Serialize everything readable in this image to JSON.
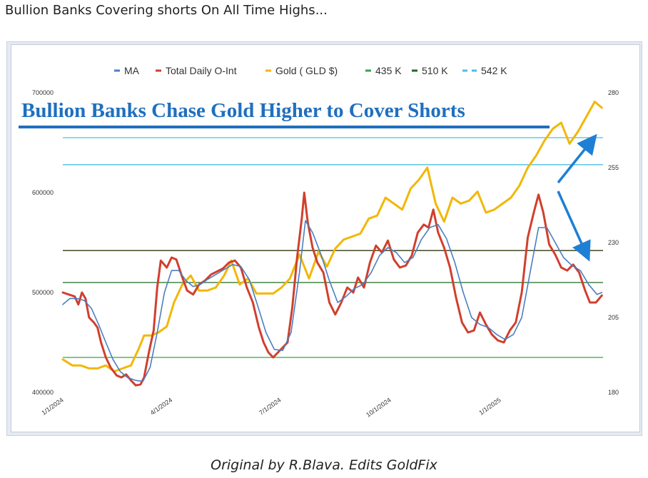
{
  "post": {
    "title": "Bullion Banks Covering shorts On All Time Highs...",
    "caption": "Original by R.Blava. Edits GoldFix"
  },
  "chart_data": {
    "type": "line",
    "annotation": "Bullion Banks Chase Gold Higher to Cover Shorts",
    "legend_position": "top",
    "grid": false,
    "x_ticks": [
      "1/1/2024",
      "4/1/2024",
      "7/1/2024",
      "10/1/2024",
      "1/1/2025"
    ],
    "x_range": [
      "2023-12-31",
      "2025-03-27"
    ],
    "y_left": {
      "range": [
        400000,
        700000
      ],
      "ticks": [
        "400000",
        "500000",
        "600000",
        "700000"
      ]
    },
    "y_right": {
      "range": [
        180,
        280
      ],
      "ticks": [
        "180",
        "205",
        "230",
        "255",
        "280"
      ]
    },
    "legend": [
      {
        "name": "MA",
        "color": "#4a7fc1",
        "style": "solid"
      },
      {
        "name": "Total Daily O-Int",
        "color": "#d13f2d",
        "style": "solid"
      },
      {
        "name": "Gold ( GLD $)",
        "color": "#f2b705",
        "style": "solid"
      },
      {
        "name": "435 K",
        "color": "#36a447",
        "style": "solid"
      },
      {
        "name": "510 K",
        "color": "#1d6a1d",
        "style": "solid"
      },
      {
        "name": "542 K",
        "color": "#4cbfe0",
        "style": "dashed"
      }
    ],
    "hlines_left_axis": [
      {
        "name": "435 K",
        "value": 435000,
        "color": "#36a447"
      },
      {
        "name": "510 K",
        "value": 510000,
        "color": "#1d6a1d"
      },
      {
        "name": "542 K",
        "value": 542000,
        "color": "#2f3a0e"
      }
    ],
    "hlines_right_axis": [
      {
        "value": 265,
        "color": "#4cbfe0"
      },
      {
        "value": 256,
        "color": "#4cbfe0"
      }
    ],
    "series": [
      {
        "name": "Total Daily O-Int",
        "axis": "left",
        "color": "#d13f2d",
        "points": [
          [
            "2023-12-31",
            500000
          ],
          [
            "2024-01-05",
            498000
          ],
          [
            "2024-01-10",
            496000
          ],
          [
            "2024-01-13",
            488000
          ],
          [
            "2024-01-16",
            500000
          ],
          [
            "2024-01-19",
            494000
          ],
          [
            "2024-01-22",
            475000
          ],
          [
            "2024-01-26",
            470000
          ],
          [
            "2024-01-29",
            465000
          ],
          [
            "2024-02-01",
            450000
          ],
          [
            "2024-02-05",
            435000
          ],
          [
            "2024-02-09",
            425000
          ],
          [
            "2024-02-14",
            417000
          ],
          [
            "2024-02-18",
            415000
          ],
          [
            "2024-02-22",
            418000
          ],
          [
            "2024-02-26",
            412000
          ],
          [
            "2024-03-01",
            407000
          ],
          [
            "2024-03-05",
            408000
          ],
          [
            "2024-03-08",
            415000
          ],
          [
            "2024-03-12",
            440000
          ],
          [
            "2024-03-16",
            462000
          ],
          [
            "2024-03-19",
            505000
          ],
          [
            "2024-03-22",
            532000
          ],
          [
            "2024-03-27",
            525000
          ],
          [
            "2024-03-31",
            535000
          ],
          [
            "2024-04-04",
            533000
          ],
          [
            "2024-04-09",
            515000
          ],
          [
            "2024-04-13",
            502000
          ],
          [
            "2024-04-18",
            498000
          ],
          [
            "2024-04-23",
            508000
          ],
          [
            "2024-04-28",
            512000
          ],
          [
            "2024-05-03",
            518000
          ],
          [
            "2024-05-08",
            521000
          ],
          [
            "2024-05-13",
            524000
          ],
          [
            "2024-05-18",
            530000
          ],
          [
            "2024-05-23",
            532000
          ],
          [
            "2024-05-28",
            525000
          ],
          [
            "2024-06-02",
            505000
          ],
          [
            "2024-06-07",
            490000
          ],
          [
            "2024-06-12",
            465000
          ],
          [
            "2024-06-16",
            450000
          ],
          [
            "2024-06-20",
            440000
          ],
          [
            "2024-06-24",
            435000
          ],
          [
            "2024-06-28",
            440000
          ],
          [
            "2024-07-02",
            445000
          ],
          [
            "2024-07-06",
            450000
          ],
          [
            "2024-07-10",
            485000
          ],
          [
            "2024-07-14",
            535000
          ],
          [
            "2024-07-18",
            575000
          ],
          [
            "2024-07-20",
            600000
          ],
          [
            "2024-07-23",
            570000
          ],
          [
            "2024-07-27",
            545000
          ],
          [
            "2024-07-31",
            530000
          ],
          [
            "2024-08-05",
            520000
          ],
          [
            "2024-08-10",
            490000
          ],
          [
            "2024-08-15",
            478000
          ],
          [
            "2024-08-20",
            490000
          ],
          [
            "2024-08-25",
            505000
          ],
          [
            "2024-08-30",
            500000
          ],
          [
            "2024-09-03",
            515000
          ],
          [
            "2024-09-08",
            505000
          ],
          [
            "2024-09-13",
            530000
          ],
          [
            "2024-09-18",
            547000
          ],
          [
            "2024-09-23",
            540000
          ],
          [
            "2024-09-28",
            552000
          ],
          [
            "2024-10-03",
            533000
          ],
          [
            "2024-10-08",
            525000
          ],
          [
            "2024-10-13",
            527000
          ],
          [
            "2024-10-18",
            537000
          ],
          [
            "2024-10-23",
            560000
          ],
          [
            "2024-10-28",
            568000
          ],
          [
            "2024-11-01",
            565000
          ],
          [
            "2024-11-05",
            583000
          ],
          [
            "2024-11-09",
            560000
          ],
          [
            "2024-11-14",
            545000
          ],
          [
            "2024-11-19",
            525000
          ],
          [
            "2024-11-24",
            495000
          ],
          [
            "2024-11-29",
            470000
          ],
          [
            "2024-12-04",
            460000
          ],
          [
            "2024-12-09",
            462000
          ],
          [
            "2024-12-14",
            480000
          ],
          [
            "2024-12-19",
            468000
          ],
          [
            "2024-12-24",
            458000
          ],
          [
            "2024-12-29",
            452000
          ],
          [
            "2025-01-03",
            450000
          ],
          [
            "2025-01-08",
            462000
          ],
          [
            "2025-01-13",
            470000
          ],
          [
            "2025-01-18",
            500000
          ],
          [
            "2025-01-23",
            555000
          ],
          [
            "2025-01-28",
            580000
          ],
          [
            "2025-02-01",
            598000
          ],
          [
            "2025-02-05",
            580000
          ],
          [
            "2025-02-10",
            548000
          ],
          [
            "2025-02-15",
            538000
          ],
          [
            "2025-02-20",
            525000
          ],
          [
            "2025-02-25",
            522000
          ],
          [
            "2025-03-02",
            528000
          ],
          [
            "2025-03-07",
            520000
          ],
          [
            "2025-03-12",
            502000
          ],
          [
            "2025-03-16",
            490000
          ],
          [
            "2025-03-21",
            490000
          ],
          [
            "2025-03-26",
            497000
          ]
        ]
      },
      {
        "name": "MA",
        "axis": "left",
        "color": "#4a7fc1",
        "points": [
          [
            "2023-12-31",
            488000
          ],
          [
            "2024-01-06",
            494000
          ],
          [
            "2024-01-12",
            494000
          ],
          [
            "2024-01-18",
            492000
          ],
          [
            "2024-01-24",
            484000
          ],
          [
            "2024-01-30",
            468000
          ],
          [
            "2024-02-05",
            450000
          ],
          [
            "2024-02-11",
            433000
          ],
          [
            "2024-02-17",
            421000
          ],
          [
            "2024-02-23",
            415000
          ],
          [
            "2024-03-01",
            412000
          ],
          [
            "2024-03-07",
            411000
          ],
          [
            "2024-03-13",
            425000
          ],
          [
            "2024-03-19",
            460000
          ],
          [
            "2024-03-25",
            500000
          ],
          [
            "2024-03-31",
            522000
          ],
          [
            "2024-04-06",
            522000
          ],
          [
            "2024-04-12",
            512000
          ],
          [
            "2024-04-18",
            506000
          ],
          [
            "2024-04-24",
            508000
          ],
          [
            "2024-04-30",
            513000
          ],
          [
            "2024-05-07",
            518000
          ],
          [
            "2024-05-14",
            523000
          ],
          [
            "2024-05-21",
            528000
          ],
          [
            "2024-05-28",
            526000
          ],
          [
            "2024-06-04",
            513000
          ],
          [
            "2024-06-11",
            487000
          ],
          [
            "2024-06-18",
            460000
          ],
          [
            "2024-06-25",
            443000
          ],
          [
            "2024-07-02",
            442000
          ],
          [
            "2024-07-09",
            460000
          ],
          [
            "2024-07-16",
            520000
          ],
          [
            "2024-07-21",
            572000
          ],
          [
            "2024-07-27",
            560000
          ],
          [
            "2024-08-03",
            538000
          ],
          [
            "2024-08-10",
            512000
          ],
          [
            "2024-08-17",
            490000
          ],
          [
            "2024-08-24",
            496000
          ],
          [
            "2024-08-31",
            504000
          ],
          [
            "2024-09-07",
            508000
          ],
          [
            "2024-09-14",
            520000
          ],
          [
            "2024-09-21",
            537000
          ],
          [
            "2024-09-28",
            545000
          ],
          [
            "2024-10-05",
            540000
          ],
          [
            "2024-10-12",
            530000
          ],
          [
            "2024-10-19",
            535000
          ],
          [
            "2024-10-26",
            553000
          ],
          [
            "2024-11-02",
            565000
          ],
          [
            "2024-11-09",
            568000
          ],
          [
            "2024-11-16",
            554000
          ],
          [
            "2024-11-23",
            530000
          ],
          [
            "2024-11-30",
            500000
          ],
          [
            "2024-12-07",
            475000
          ],
          [
            "2024-12-14",
            468000
          ],
          [
            "2024-12-21",
            465000
          ],
          [
            "2024-12-28",
            458000
          ],
          [
            "2025-01-04",
            453000
          ],
          [
            "2025-01-11",
            458000
          ],
          [
            "2025-01-18",
            475000
          ],
          [
            "2025-01-25",
            520000
          ],
          [
            "2025-02-01",
            565000
          ],
          [
            "2025-02-08",
            565000
          ],
          [
            "2025-02-15",
            550000
          ],
          [
            "2025-02-22",
            535000
          ],
          [
            "2025-03-01",
            527000
          ],
          [
            "2025-03-08",
            522000
          ],
          [
            "2025-03-15",
            508000
          ],
          [
            "2025-03-22",
            498000
          ],
          [
            "2025-03-26",
            500000
          ]
        ]
      },
      {
        "name": "Gold ( GLD $)",
        "axis": "right",
        "color": "#f2b705",
        "points": [
          [
            "2023-12-31",
            191
          ],
          [
            "2024-01-08",
            189
          ],
          [
            "2024-01-15",
            189
          ],
          [
            "2024-01-22",
            188
          ],
          [
            "2024-01-29",
            188
          ],
          [
            "2024-02-05",
            189
          ],
          [
            "2024-02-12",
            187
          ],
          [
            "2024-02-19",
            188
          ],
          [
            "2024-02-26",
            189
          ],
          [
            "2024-03-04",
            195
          ],
          [
            "2024-03-08",
            199
          ],
          [
            "2024-03-14",
            199
          ],
          [
            "2024-03-20",
            200
          ],
          [
            "2024-03-27",
            202
          ],
          [
            "2024-04-02",
            210
          ],
          [
            "2024-04-09",
            216
          ],
          [
            "2024-04-16",
            219
          ],
          [
            "2024-04-23",
            214
          ],
          [
            "2024-04-30",
            214
          ],
          [
            "2024-05-07",
            215
          ],
          [
            "2024-05-14",
            219
          ],
          [
            "2024-05-20",
            224
          ],
          [
            "2024-05-27",
            216
          ],
          [
            "2024-06-03",
            218
          ],
          [
            "2024-06-10",
            213
          ],
          [
            "2024-06-17",
            213
          ],
          [
            "2024-06-24",
            213
          ],
          [
            "2024-07-01",
            215
          ],
          [
            "2024-07-08",
            218
          ],
          [
            "2024-07-16",
            226
          ],
          [
            "2024-07-24",
            218
          ],
          [
            "2024-08-01",
            227
          ],
          [
            "2024-08-08",
            222
          ],
          [
            "2024-08-15",
            228
          ],
          [
            "2024-08-22",
            231
          ],
          [
            "2024-08-29",
            232
          ],
          [
            "2024-09-05",
            233
          ],
          [
            "2024-09-12",
            238
          ],
          [
            "2024-09-19",
            239
          ],
          [
            "2024-09-26",
            245
          ],
          [
            "2024-10-03",
            243
          ],
          [
            "2024-10-10",
            241
          ],
          [
            "2024-10-17",
            248
          ],
          [
            "2024-10-24",
            251
          ],
          [
            "2024-10-31",
            255
          ],
          [
            "2024-11-07",
            243
          ],
          [
            "2024-11-14",
            237
          ],
          [
            "2024-11-21",
            245
          ],
          [
            "2024-11-28",
            243
          ],
          [
            "2024-12-05",
            244
          ],
          [
            "2024-12-12",
            247
          ],
          [
            "2024-12-19",
            240
          ],
          [
            "2024-12-26",
            241
          ],
          [
            "2025-01-02",
            243
          ],
          [
            "2025-01-09",
            245
          ],
          [
            "2025-01-16",
            249
          ],
          [
            "2025-01-23",
            255
          ],
          [
            "2025-01-30",
            259
          ],
          [
            "2025-02-06",
            264
          ],
          [
            "2025-02-13",
            268
          ],
          [
            "2025-02-20",
            270
          ],
          [
            "2025-02-27",
            263
          ],
          [
            "2025-03-06",
            267
          ],
          [
            "2025-03-13",
            272
          ],
          [
            "2025-03-20",
            277
          ],
          [
            "2025-03-26",
            275
          ]
        ]
      }
    ]
  }
}
